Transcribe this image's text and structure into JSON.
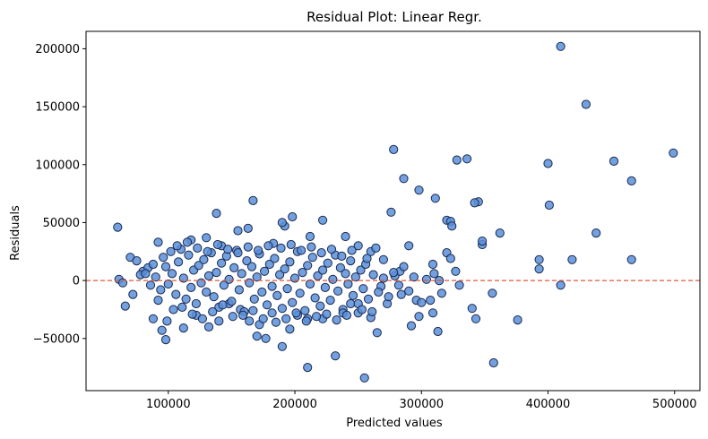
{
  "chart_data": {
    "type": "scatter",
    "title": "Residual Plot: Linear Regr.",
    "xlabel": "Predicted values",
    "ylabel": "Residuals",
    "xlim": [
      35000,
      520000
    ],
    "ylim": [
      -95000,
      215000
    ],
    "xticks": [
      100000,
      200000,
      300000,
      400000,
      500000
    ],
    "xtick_labels": [
      "100000",
      "200000",
      "300000",
      "400000",
      "500000"
    ],
    "yticks": [
      -50000,
      0,
      50000,
      100000,
      150000,
      200000
    ],
    "ytick_labels": [
      "−50000",
      "0",
      "50000",
      "100000",
      "150000",
      "200000"
    ],
    "grid": false,
    "colors": {
      "marker_fill": "#5b8fd9",
      "marker_edge": "#1a2a50",
      "reference_line": "#e0583c"
    },
    "reference_line": {
      "y": 0,
      "style": "dashed"
    },
    "points": [
      [
        410000,
        202000
      ],
      [
        430000,
        152000
      ],
      [
        499000,
        110000
      ],
      [
        452000,
        103000
      ],
      [
        400000,
        101000
      ],
      [
        336000,
        105000
      ],
      [
        466000,
        86000
      ],
      [
        401000,
        65000
      ],
      [
        362000,
        41000
      ],
      [
        438000,
        41000
      ],
      [
        419000,
        18000
      ],
      [
        466000,
        18000
      ],
      [
        393000,
        18000
      ],
      [
        393000,
        10000
      ],
      [
        410000,
        -4000
      ],
      [
        376000,
        -34000
      ],
      [
        357000,
        -71000
      ],
      [
        356000,
        -11000
      ],
      [
        343000,
        -33000
      ],
      [
        348000,
        31000
      ],
      [
        348000,
        34000
      ],
      [
        345000,
        68000
      ],
      [
        342000,
        67000
      ],
      [
        328000,
        104000
      ],
      [
        278000,
        113000
      ],
      [
        286000,
        88000
      ],
      [
        298000,
        78000
      ],
      [
        311000,
        71000
      ],
      [
        320000,
        52000
      ],
      [
        323000,
        51000
      ],
      [
        324000,
        47000
      ],
      [
        276000,
        59000
      ],
      [
        290000,
        30000
      ],
      [
        320000,
        24000
      ],
      [
        323000,
        19000
      ],
      [
        327000,
        8000
      ],
      [
        309000,
        14000
      ],
      [
        314000,
        0
      ],
      [
        330000,
        -4000
      ],
      [
        340000,
        -24000
      ],
      [
        309000,
        -28000
      ],
      [
        313000,
        -44000
      ],
      [
        298000,
        -31000
      ],
      [
        292000,
        -39000
      ],
      [
        307000,
        -17000
      ],
      [
        296000,
        -17000
      ],
      [
        284000,
        -12000
      ],
      [
        273000,
        -20000
      ],
      [
        265000,
        -45000
      ],
      [
        255000,
        -84000
      ],
      [
        232000,
        -65000
      ],
      [
        210000,
        -75000
      ],
      [
        190000,
        -57000
      ],
      [
        177000,
        -50000
      ],
      [
        170000,
        -48000
      ],
      [
        210000,
        -33000
      ],
      [
        222000,
        -33000
      ],
      [
        238000,
        -25000
      ],
      [
        244000,
        -20000
      ],
      [
        250000,
        -28000
      ],
      [
        260000,
        -32000
      ],
      [
        268000,
        -5000
      ],
      [
        279000,
        4000
      ],
      [
        283000,
        8000
      ],
      [
        270000,
        18000
      ],
      [
        260000,
        25000
      ],
      [
        250000,
        30000
      ],
      [
        240000,
        38000
      ],
      [
        222000,
        52000
      ],
      [
        212000,
        38000
      ],
      [
        198000,
        55000
      ],
      [
        192000,
        47000
      ],
      [
        190000,
        50000
      ],
      [
        183000,
        32000
      ],
      [
        167000,
        69000
      ],
      [
        163000,
        45000
      ],
      [
        155000,
        43000
      ],
      [
        138000,
        58000
      ],
      [
        142000,
        30000
      ],
      [
        130000,
        37000
      ],
      [
        118000,
        35000
      ],
      [
        110000,
        27000
      ],
      [
        102000,
        25000
      ],
      [
        92000,
        33000
      ],
      [
        60000,
        46000
      ],
      [
        61000,
        1000
      ],
      [
        66000,
        -22000
      ],
      [
        72000,
        -12000
      ],
      [
        80000,
        8000
      ],
      [
        88000,
        -33000
      ],
      [
        95000,
        -43000
      ],
      [
        98000,
        -51000
      ],
      [
        104000,
        -25000
      ],
      [
        112000,
        -41000
      ],
      [
        122000,
        -30000
      ],
      [
        132000,
        -40000
      ],
      [
        140000,
        -35000
      ],
      [
        148000,
        -20000
      ],
      [
        157000,
        -25000
      ],
      [
        164000,
        -35000
      ],
      [
        172000,
        -38000
      ],
      [
        182000,
        -28000
      ],
      [
        196000,
        -42000
      ],
      [
        202000,
        -30000
      ],
      [
        70000,
        20000
      ],
      [
        75000,
        17000
      ],
      [
        78000,
        5000
      ],
      [
        84000,
        11000
      ],
      [
        86000,
        -4000
      ],
      [
        90000,
        3000
      ],
      [
        94000,
        -8000
      ],
      [
        98000,
        12000
      ],
      [
        100000,
        -3000
      ],
      [
        103000,
        6000
      ],
      [
        106000,
        -12000
      ],
      [
        108000,
        16000
      ],
      [
        112000,
        2000
      ],
      [
        114000,
        -16000
      ],
      [
        116000,
        22000
      ],
      [
        118000,
        -6000
      ],
      [
        120000,
        9000
      ],
      [
        122000,
        -20000
      ],
      [
        124000,
        13000
      ],
      [
        126000,
        -2000
      ],
      [
        128000,
        18000
      ],
      [
        130000,
        -10000
      ],
      [
        132000,
        4000
      ],
      [
        134000,
        24000
      ],
      [
        136000,
        -14000
      ],
      [
        138000,
        7000
      ],
      [
        140000,
        -23000
      ],
      [
        142000,
        15000
      ],
      [
        144000,
        -4000
      ],
      [
        146000,
        21000
      ],
      [
        148000,
        1000
      ],
      [
        150000,
        -18000
      ],
      [
        152000,
        11000
      ],
      [
        154000,
        26000
      ],
      [
        156000,
        -8000
      ],
      [
        158000,
        6000
      ],
      [
        160000,
        -27000
      ],
      [
        162000,
        17000
      ],
      [
        164000,
        -2000
      ],
      [
        166000,
        12000
      ],
      [
        168000,
        -16000
      ],
      [
        170000,
        3000
      ],
      [
        172000,
        23000
      ],
      [
        174000,
        -10000
      ],
      [
        176000,
        8000
      ],
      [
        178000,
        -21000
      ],
      [
        180000,
        14000
      ],
      [
        182000,
        -5000
      ],
      [
        184000,
        19000
      ],
      [
        186000,
        -13000
      ],
      [
        188000,
        5000
      ],
      [
        190000,
        -24000
      ],
      [
        192000,
        10000
      ],
      [
        194000,
        -7000
      ],
      [
        196000,
        16000
      ],
      [
        198000,
        -19000
      ],
      [
        200000,
        2000
      ],
      [
        202000,
        25000
      ],
      [
        204000,
        -11000
      ],
      [
        206000,
        7000
      ],
      [
        208000,
        -26000
      ],
      [
        210000,
        13000
      ],
      [
        212000,
        -3000
      ],
      [
        214000,
        20000
      ],
      [
        216000,
        -15000
      ],
      [
        218000,
        4000
      ],
      [
        220000,
        -22000
      ],
      [
        222000,
        9000
      ],
      [
        224000,
        -6000
      ],
      [
        226000,
        15000
      ],
      [
        228000,
        -17000
      ],
      [
        230000,
        1000
      ],
      [
        232000,
        22000
      ],
      [
        234000,
        -9000
      ],
      [
        236000,
        11000
      ],
      [
        238000,
        -28000
      ],
      [
        240000,
        6000
      ],
      [
        242000,
        -3000
      ],
      [
        244000,
        17000
      ],
      [
        246000,
        -13000
      ],
      [
        248000,
        3000
      ],
      [
        250000,
        -20000
      ],
      [
        252000,
        9000
      ],
      [
        254000,
        -7000
      ],
      [
        256000,
        14000
      ],
      [
        258000,
        -16000
      ],
      [
        262000,
        5000
      ],
      [
        266000,
        -10000
      ],
      [
        270000,
        2000
      ],
      [
        274000,
        -14000
      ],
      [
        278000,
        7000
      ],
      [
        282000,
        -4000
      ],
      [
        286000,
        12000
      ],
      [
        290000,
        -9000
      ],
      [
        294000,
        3000
      ],
      [
        300000,
        -19000
      ],
      [
        304000,
        1000
      ],
      [
        310000,
        6000
      ],
      [
        316000,
        -11000
      ],
      [
        64000,
        -2000
      ],
      [
        82000,
        6000
      ],
      [
        88000,
        14000
      ],
      [
        92000,
        -17000
      ],
      [
        96000,
        20000
      ],
      [
        99000,
        -35000
      ],
      [
        107000,
        30000
      ],
      [
        111000,
        -23000
      ],
      [
        115000,
        33000
      ],
      [
        119000,
        -29000
      ],
      [
        123000,
        28000
      ],
      [
        127000,
        -33000
      ],
      [
        131000,
        25000
      ],
      [
        135000,
        -27000
      ],
      [
        139000,
        31000
      ],
      [
        143000,
        -21000
      ],
      [
        147000,
        27000
      ],
      [
        151000,
        -31000
      ],
      [
        155000,
        24000
      ],
      [
        159000,
        -30000
      ],
      [
        163000,
        29000
      ],
      [
        167000,
        -26000
      ],
      [
        171000,
        26000
      ],
      [
        175000,
        -33000
      ],
      [
        179000,
        30000
      ],
      [
        185000,
        -36000
      ],
      [
        189000,
        28000
      ],
      [
        193000,
        -33000
      ],
      [
        197000,
        31000
      ],
      [
        201000,
        -28000
      ],
      [
        205000,
        26000
      ],
      [
        209000,
        -35000
      ],
      [
        213000,
        29000
      ],
      [
        217000,
        -31000
      ],
      [
        221000,
        24000
      ],
      [
        225000,
        -29000
      ],
      [
        229000,
        27000
      ],
      [
        233000,
        -34000
      ],
      [
        237000,
        21000
      ],
      [
        241000,
        -30000
      ],
      [
        245000,
        26000
      ],
      [
        253000,
        -25000
      ],
      [
        257000,
        19000
      ],
      [
        261000,
        -27000
      ],
      [
        264000,
        28000
      ]
    ]
  }
}
